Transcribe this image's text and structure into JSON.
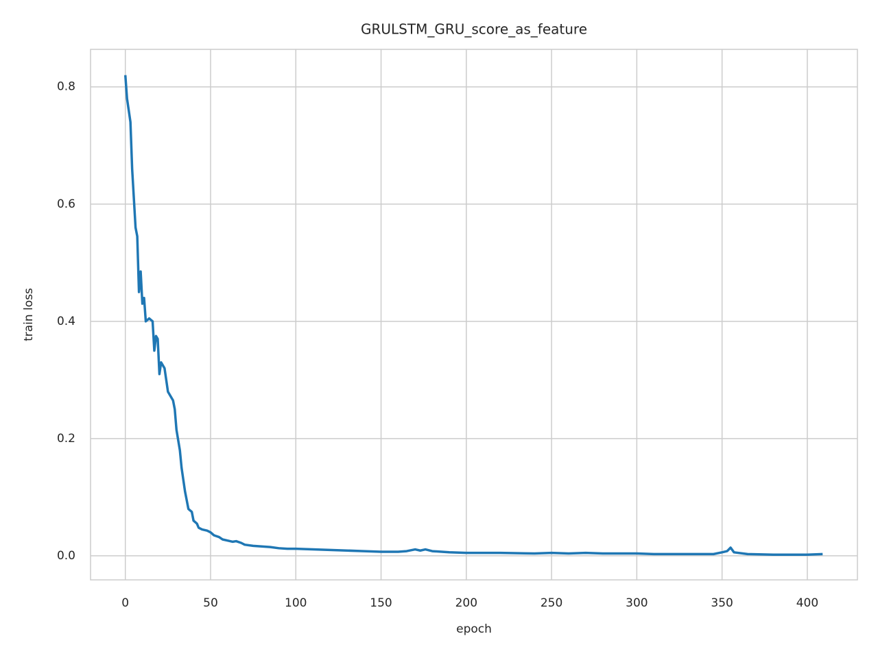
{
  "chart_data": {
    "type": "line",
    "title": "GRULSTM_GRU_score_as_feature",
    "x_label": "epoch",
    "y_label": "train loss",
    "x": [
      0,
      1,
      3,
      4,
      6,
      7,
      8,
      9,
      10,
      11,
      12,
      14,
      16,
      17,
      18,
      19,
      20,
      21,
      23,
      25,
      27,
      28,
      29,
      30,
      32,
      33,
      35,
      36,
      37,
      39,
      40,
      42,
      43,
      45,
      48,
      50,
      52,
      55,
      57,
      60,
      63,
      65,
      68,
      70,
      75,
      80,
      85,
      90,
      95,
      100,
      110,
      120,
      130,
      140,
      150,
      160,
      165,
      170,
      173,
      176,
      180,
      190,
      200,
      220,
      240,
      250,
      260,
      270,
      280,
      300,
      310,
      330,
      345,
      350,
      353,
      355,
      357,
      365,
      380,
      400,
      409
    ],
    "series": [
      {
        "name": "train loss",
        "color": "#1f77b4",
        "values": [
          0.82,
          0.78,
          0.74,
          0.66,
          0.56,
          0.545,
          0.45,
          0.485,
          0.43,
          0.44,
          0.4,
          0.405,
          0.4,
          0.35,
          0.375,
          0.37,
          0.31,
          0.33,
          0.32,
          0.28,
          0.27,
          0.265,
          0.25,
          0.215,
          0.18,
          0.15,
          0.11,
          0.095,
          0.08,
          0.075,
          0.06,
          0.055,
          0.048,
          0.045,
          0.043,
          0.04,
          0.035,
          0.032,
          0.028,
          0.026,
          0.024,
          0.025,
          0.022,
          0.019,
          0.017,
          0.016,
          0.015,
          0.013,
          0.012,
          0.012,
          0.011,
          0.01,
          0.009,
          0.008,
          0.007,
          0.007,
          0.008,
          0.011,
          0.009,
          0.011,
          0.008,
          0.006,
          0.005,
          0.005,
          0.004,
          0.005,
          0.004,
          0.005,
          0.004,
          0.004,
          0.003,
          0.003,
          0.003,
          0.006,
          0.008,
          0.014,
          0.006,
          0.003,
          0.002,
          0.002,
          0.003
        ]
      }
    ],
    "xlim": [
      -20.4,
      429.4
    ],
    "ylim": [
      -0.041,
      0.864
    ],
    "xticks": [
      0,
      50,
      100,
      150,
      200,
      250,
      300,
      350,
      400
    ],
    "yticks": [
      {
        "value": 0,
        "label": "0.0"
      },
      0.2,
      0.4,
      0.6,
      0.8
    ],
    "grid": true
  }
}
